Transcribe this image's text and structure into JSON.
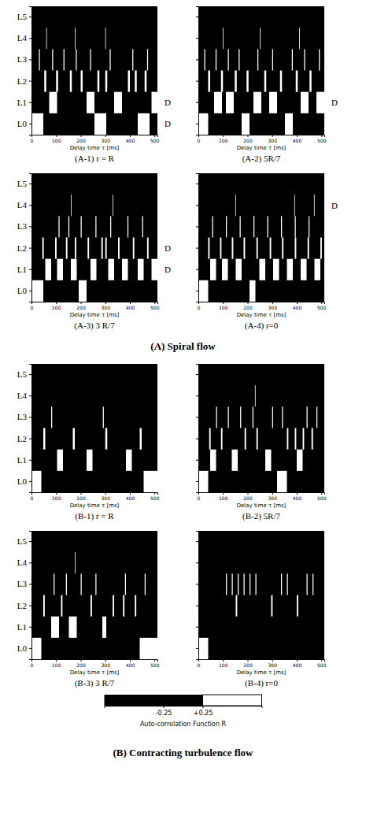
{
  "chart_data": [
    {
      "type": "heatmap",
      "title": "(A-1) r = R",
      "x_label": "Delay time τ [ms]",
      "categories": [
        "L0",
        "L1",
        "L2",
        "L3",
        "L4",
        "L5"
      ],
      "xlim": [
        0,
        512
      ],
      "xticks": [
        0,
        100,
        200,
        300,
        400,
        500
      ],
      "intervals": [
        [
          [
            0,
            48
          ],
          [
            256,
            304
          ],
          [
            432,
            480
          ]
        ],
        [
          [
            72,
            104
          ],
          [
            224,
            256
          ],
          [
            336,
            368
          ],
          [
            488,
            512
          ]
        ],
        [
          [
            52,
            60
          ],
          [
            100,
            108
          ],
          [
            156,
            164
          ],
          [
            200,
            208
          ],
          [
            268,
            276
          ],
          [
            300,
            308
          ],
          [
            392,
            400
          ],
          [
            420,
            428
          ],
          [
            460,
            468
          ]
        ],
        [
          [
            30,
            34
          ],
          [
            84,
            88
          ],
          [
            130,
            134
          ],
          [
            180,
            184
          ],
          [
            238,
            242
          ],
          [
            318,
            322
          ],
          [
            410,
            414
          ],
          [
            470,
            474
          ]
        ],
        [
          [
            60,
            62
          ],
          [
            176,
            178
          ],
          [
            300,
            302
          ]
        ],
        []
      ],
      "annotations": [
        {
          "text": "D",
          "y": "L1"
        },
        {
          "text": "D",
          "y": "L0"
        }
      ]
    },
    {
      "type": "heatmap",
      "title": "(A-2) 5R/7",
      "x_label": "Delay time τ [ms]",
      "categories": [
        "L0",
        "L1",
        "L2",
        "L3",
        "L4",
        "L5"
      ],
      "xlim": [
        0,
        512
      ],
      "xticks": [
        0,
        100,
        200,
        300,
        400,
        500
      ],
      "tick_labels": "x",
      "intervals": [
        [
          [
            0,
            40
          ],
          [
            176,
            208
          ],
          [
            352,
            384
          ]
        ],
        [
          [
            64,
            96
          ],
          [
            112,
            144
          ],
          [
            224,
            256
          ],
          [
            288,
            320
          ],
          [
            416,
            448
          ],
          [
            480,
            512
          ]
        ],
        [
          [
            40,
            48
          ],
          [
            92,
            100
          ],
          [
            148,
            156
          ],
          [
            196,
            204
          ],
          [
            268,
            276
          ],
          [
            332,
            340
          ],
          [
            396,
            404
          ],
          [
            452,
            460
          ]
        ],
        [
          [
            24,
            28
          ],
          [
            70,
            74
          ],
          [
            120,
            124
          ],
          [
            164,
            168
          ],
          [
            240,
            244
          ],
          [
            300,
            304
          ],
          [
            380,
            384
          ],
          [
            430,
            434
          ],
          [
            490,
            494
          ]
        ],
        [
          [
            100,
            102
          ],
          [
            250,
            252
          ],
          [
            410,
            412
          ]
        ],
        []
      ],
      "annotations": [
        {
          "text": "D",
          "y": "L1"
        }
      ]
    },
    {
      "type": "heatmap",
      "title": "(A-3) 3 R/7",
      "x_label": "Delay time τ [ms]",
      "categories": [
        "L0",
        "L1",
        "L2",
        "L3",
        "L4",
        "L5"
      ],
      "xlim": [
        0,
        512
      ],
      "xticks": [
        0,
        100,
        200,
        300,
        400,
        500
      ],
      "intervals": [
        [
          [
            0,
            48
          ],
          [
            192,
            224
          ]
        ],
        [
          [
            56,
            80
          ],
          [
            104,
            128
          ],
          [
            160,
            184
          ],
          [
            240,
            264
          ],
          [
            312,
            336
          ],
          [
            368,
            392
          ],
          [
            432,
            456
          ],
          [
            488,
            512
          ]
        ],
        [
          [
            44,
            50
          ],
          [
            96,
            102
          ],
          [
            140,
            146
          ],
          [
            176,
            182
          ],
          [
            228,
            234
          ],
          [
            284,
            290
          ],
          [
            300,
            306
          ],
          [
            352,
            358
          ],
          [
            412,
            418
          ],
          [
            470,
            476
          ]
        ],
        [
          [
            110,
            114
          ],
          [
            150,
            154
          ],
          [
            200,
            204
          ],
          [
            260,
            264
          ],
          [
            320,
            324
          ],
          [
            390,
            394
          ],
          [
            450,
            454
          ]
        ],
        [
          [
            160,
            162
          ],
          [
            330,
            332
          ]
        ],
        []
      ],
      "annotations": [
        {
          "text": "D",
          "y": "L2"
        },
        {
          "text": "D",
          "y": "L1"
        }
      ]
    },
    {
      "type": "heatmap",
      "title": "(A-4) r=0",
      "x_label": "Delay time τ [ms]",
      "categories": [
        "L0",
        "L1",
        "L2",
        "L3",
        "L4",
        "L5"
      ],
      "xlim": [
        0,
        512
      ],
      "xticks": [
        0,
        100,
        200,
        300,
        400,
        500
      ],
      "tick_labels": "x",
      "intervals": [
        [
          [
            0,
            40
          ],
          [
            208,
            232
          ]
        ],
        [
          [
            48,
            72
          ],
          [
            96,
            120
          ],
          [
            152,
            176
          ],
          [
            248,
            272
          ],
          [
            304,
            328
          ],
          [
            360,
            384
          ],
          [
            416,
            440
          ],
          [
            472,
            496
          ]
        ],
        [
          [
            40,
            46
          ],
          [
            88,
            94
          ],
          [
            136,
            142
          ],
          [
            184,
            190
          ],
          [
            236,
            242
          ],
          [
            290,
            296
          ],
          [
            340,
            346
          ],
          [
            392,
            398
          ],
          [
            444,
            450
          ],
          [
            496,
            502
          ]
        ],
        [
          [
            56,
            60
          ],
          [
            112,
            116
          ],
          [
            168,
            172
          ],
          [
            224,
            228
          ],
          [
            280,
            284
          ],
          [
            336,
            340
          ],
          [
            392,
            396
          ],
          [
            448,
            452
          ]
        ],
        [
          [
            150,
            152
          ],
          [
            390,
            392
          ],
          [
            470,
            472
          ]
        ],
        []
      ],
      "annotations": [
        {
          "text": "D",
          "y": "L4"
        }
      ]
    },
    {
      "type": "heatmap",
      "title": "(B-1) r = R",
      "x_label": "Delay time τ [ms]",
      "categories": [
        "L0",
        "L1",
        "L2",
        "L3",
        "L4",
        "L5"
      ],
      "xlim": [
        0,
        512
      ],
      "xticks": [
        0,
        100,
        200,
        300,
        400,
        500
      ],
      "intervals": [
        [
          [
            0,
            40
          ],
          [
            456,
            512
          ]
        ],
        [
          [
            104,
            128
          ],
          [
            224,
            248
          ],
          [
            384,
            408
          ]
        ],
        [
          [
            48,
            56
          ],
          [
            168,
            176
          ],
          [
            300,
            308
          ],
          [
            440,
            448
          ]
        ],
        [
          [
            80,
            84
          ],
          [
            290,
            294
          ]
        ],
        [],
        []
      ]
    },
    {
      "type": "heatmap",
      "title": "(B-2) 5R/7",
      "x_label": "Delay time τ [ms]",
      "categories": [
        "L0",
        "L1",
        "L2",
        "L3",
        "L4",
        "L5"
      ],
      "xlim": [
        0,
        512
      ],
      "xticks": [
        0,
        100,
        200,
        300,
        400,
        500
      ],
      "tick_labels": "x",
      "intervals": [
        [
          [
            0,
            40
          ],
          [
            320,
            360
          ]
        ],
        [
          [
            48,
            72
          ],
          [
            136,
            160
          ],
          [
            272,
            296
          ],
          [
            400,
            424
          ]
        ],
        [
          [
            44,
            50
          ],
          [
            92,
            98
          ],
          [
            188,
            194
          ],
          [
            236,
            242
          ],
          [
            360,
            366
          ],
          [
            392,
            398
          ],
          [
            424,
            430
          ],
          [
            460,
            466
          ]
        ],
        [
          [
            72,
            76
          ],
          [
            120,
            124
          ],
          [
            170,
            174
          ],
          [
            220,
            224
          ],
          [
            300,
            304
          ],
          [
            340,
            344
          ],
          [
            440,
            444
          ],
          [
            480,
            484
          ]
        ],
        [
          [
            230,
            232
          ]
        ],
        []
      ]
    },
    {
      "type": "heatmap",
      "title": "(B-3) 3 R/7",
      "x_label": "Delay time τ [ms]",
      "categories": [
        "L0",
        "L1",
        "L2",
        "L3",
        "L4",
        "L5"
      ],
      "xlim": [
        0,
        512
      ],
      "xticks": [
        0,
        100,
        200,
        300,
        400,
        500
      ],
      "intervals": [
        [
          [
            0,
            40
          ],
          [
            440,
            512
          ]
        ],
        [
          [
            80,
            112
          ],
          [
            152,
            184
          ],
          [
            288,
            304
          ]
        ],
        [
          [
            48,
            54
          ],
          [
            120,
            126
          ],
          [
            240,
            246
          ],
          [
            330,
            336
          ],
          [
            372,
            378
          ],
          [
            420,
            426
          ]
        ],
        [
          [
            90,
            94
          ],
          [
            140,
            144
          ],
          [
            200,
            204
          ],
          [
            260,
            264
          ],
          [
            380,
            384
          ],
          [
            460,
            464
          ]
        ],
        [
          [
            176,
            178
          ]
        ],
        []
      ]
    },
    {
      "type": "heatmap",
      "title": "(B-4) r=0",
      "x_label": "Delay time τ [ms]",
      "categories": [
        "L0",
        "L1",
        "L2",
        "L3",
        "L4",
        "L5"
      ],
      "xlim": [
        0,
        512
      ],
      "xticks": [
        0,
        100,
        200,
        300,
        400,
        500
      ],
      "tick_labels": "x",
      "intervals": [
        [
          [
            0,
            40
          ]
        ],
        [],
        [
          [
            152,
            158
          ],
          [
            296,
            302
          ],
          [
            400,
            406
          ]
        ],
        [
          [
            112,
            116
          ],
          [
            136,
            140
          ],
          [
            160,
            164
          ],
          [
            184,
            188
          ],
          [
            208,
            212
          ],
          [
            232,
            236
          ],
          [
            336,
            340
          ],
          [
            360,
            364
          ],
          [
            440,
            444
          ],
          [
            464,
            468
          ]
        ],
        [],
        []
      ]
    }
  ],
  "groups": [
    {
      "title": "(A) Spiral flow"
    },
    {
      "title": "(B) Contracting turbulence flow"
    }
  ],
  "colorbar": {
    "label": "Auto-correlation Function R",
    "range": [
      -1,
      1
    ],
    "ticks": [
      -0.25,
      {
        "value": 0.25,
        "label": "+0.25"
      }
    ],
    "colors": [
      "#000000",
      "#ffffff"
    ]
  }
}
